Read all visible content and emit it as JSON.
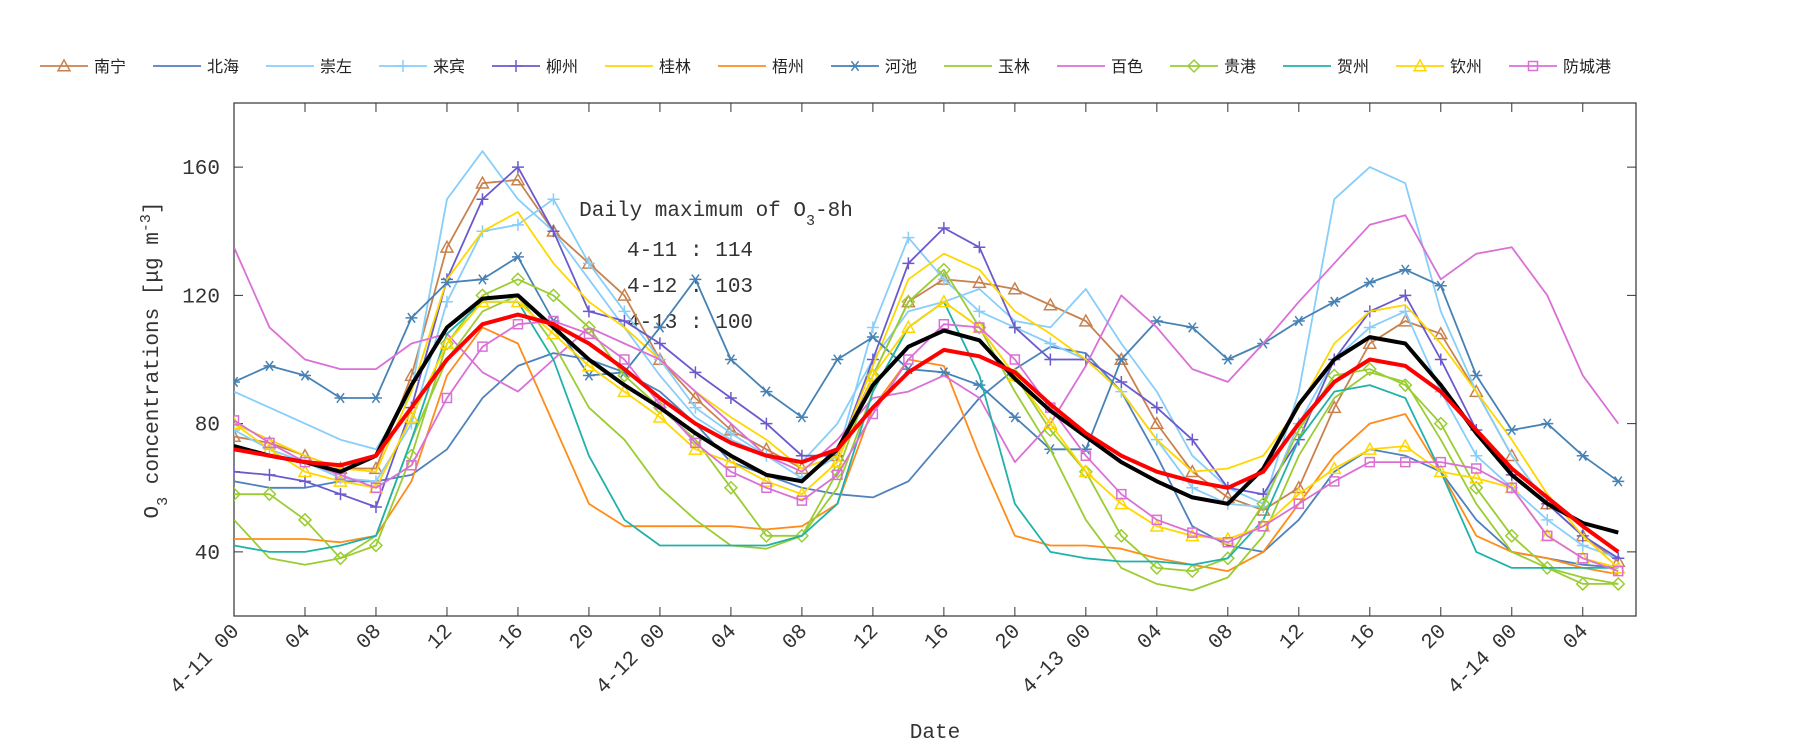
{
  "chart_data": {
    "type": "line",
    "xlabel": "Date",
    "ylabel": [
      {
        "text": "O"
      },
      {
        "text": "3",
        "shift": "sub"
      },
      {
        "text": " concentrations [μg m"
      },
      {
        "text": "-3",
        "shift": "super"
      },
      {
        "text": "]"
      }
    ],
    "annotation": {
      "title": [
        {
          "text": "Daily maximum of O"
        },
        {
          "text": "3",
          "shift": "sub"
        },
        {
          "text": "-8h"
        }
      ],
      "lines": [
        "4-11 : 114",
        "4-12 : 103",
        "4-13 : 100"
      ]
    },
    "xlim": [
      0,
      79
    ],
    "xticks": [
      {
        "value": 0,
        "label": "4-11 00"
      },
      {
        "value": 4,
        "label": "04"
      },
      {
        "value": 8,
        "label": "08"
      },
      {
        "value": 12,
        "label": "12"
      },
      {
        "value": 16,
        "label": "16"
      },
      {
        "value": 20,
        "label": "20"
      },
      {
        "value": 24,
        "label": "4-12 00"
      },
      {
        "value": 28,
        "label": "04"
      },
      {
        "value": 32,
        "label": "08"
      },
      {
        "value": 36,
        "label": "12"
      },
      {
        "value": 40,
        "label": "16"
      },
      {
        "value": 44,
        "label": "20"
      },
      {
        "value": 48,
        "label": "4-13 00"
      },
      {
        "value": 52,
        "label": "04"
      },
      {
        "value": 56,
        "label": "08"
      },
      {
        "value": 60,
        "label": "12"
      },
      {
        "value": 64,
        "label": "16"
      },
      {
        "value": 68,
        "label": "20"
      },
      {
        "value": 72,
        "label": "4-14 00"
      },
      {
        "value": 76,
        "label": "04"
      }
    ],
    "ylim": [
      20,
      180
    ],
    "yticks": [
      40,
      80,
      120,
      160
    ],
    "grid": false,
    "x": [
      0,
      2,
      4,
      6,
      8,
      10,
      12,
      14,
      16,
      18,
      20,
      22,
      24,
      26,
      28,
      30,
      32,
      34,
      36,
      38,
      40,
      42,
      44,
      46,
      48,
      50,
      52,
      54,
      56,
      58,
      60,
      62,
      64,
      66,
      68,
      70,
      72,
      74,
      76,
      78
    ],
    "series": [
      {
        "name": "南宁",
        "color": "#c8824f",
        "marker": "triangle",
        "values": [
          76,
          74,
          70,
          66,
          66,
          95,
          135,
          155,
          156,
          140,
          130,
          120,
          100,
          88,
          78,
          72,
          66,
          70,
          95,
          118,
          125,
          124,
          122,
          117,
          112,
          100,
          80,
          65,
          57,
          53,
          60,
          85,
          105,
          112,
          108,
          90,
          70,
          55,
          45,
          37
        ]
      },
      {
        "name": "北海",
        "color": "#4f81bd",
        "values": [
          62,
          60,
          60,
          62,
          62,
          64,
          72,
          88,
          98,
          102,
          100,
          96,
          90,
          80,
          68,
          64,
          60,
          58,
          57,
          62,
          75,
          88,
          97,
          104,
          102,
          90,
          70,
          48,
          42,
          40,
          50,
          65,
          72,
          70,
          65,
          50,
          40,
          38,
          36,
          35
        ]
      },
      {
        "name": "崇左",
        "color": "#87cefa",
        "values": [
          90,
          85,
          80,
          75,
          72,
          90,
          150,
          165,
          150,
          140,
          125,
          110,
          95,
          82,
          75,
          70,
          68,
          80,
          100,
          115,
          118,
          122,
          112,
          110,
          122,
          105,
          90,
          70,
          60,
          55,
          90,
          150,
          160,
          155,
          115,
          90,
          70,
          55,
          45,
          38
        ]
      },
      {
        "name": "来宾",
        "color": "#87cefa",
        "marker": "plus",
        "values": [
          78,
          72,
          68,
          63,
          62,
          80,
          118,
          140,
          142,
          150,
          130,
          115,
          100,
          85,
          77,
          70,
          63,
          70,
          110,
          138,
          125,
          115,
          110,
          105,
          100,
          90,
          75,
          60,
          55,
          54,
          80,
          100,
          110,
          115,
          90,
          70,
          60,
          50,
          42,
          38
        ]
      },
      {
        "name": "柳州",
        "color": "#6a5acd",
        "marker": "plus",
        "values": [
          65,
          64,
          62,
          58,
          54,
          85,
          125,
          150,
          160,
          140,
          115,
          112,
          105,
          96,
          88,
          80,
          70,
          70,
          100,
          130,
          141,
          135,
          110,
          100,
          100,
          93,
          85,
          75,
          60,
          58,
          75,
          100,
          115,
          120,
          100,
          78,
          64,
          55,
          45,
          38
        ]
      },
      {
        "name": "桂林",
        "color": "#ffd700",
        "values": [
          80,
          75,
          70,
          66,
          65,
          90,
          125,
          140,
          146,
          130,
          118,
          110,
          100,
          90,
          82,
          75,
          66,
          70,
          98,
          125,
          133,
          128,
          115,
          108,
          100,
          90,
          75,
          65,
          66,
          70,
          85,
          105,
          115,
          117,
          105,
          90,
          75,
          58,
          45,
          35
        ]
      },
      {
        "name": "梧州",
        "color": "#ff8c1a",
        "values": [
          44,
          44,
          44,
          43,
          45,
          62,
          95,
          110,
          105,
          80,
          55,
          48,
          48,
          48,
          48,
          47,
          48,
          55,
          85,
          100,
          98,
          70,
          45,
          42,
          42,
          41,
          38,
          36,
          34,
          40,
          55,
          70,
          80,
          83,
          65,
          45,
          40,
          38,
          35,
          33
        ]
      },
      {
        "name": "河池",
        "color": "#4682b4",
        "marker": "asterisk",
        "values": [
          93,
          98,
          95,
          88,
          88,
          113,
          124,
          125,
          132,
          112,
          95,
          96,
          110,
          125,
          100,
          90,
          82,
          100,
          107,
          97,
          96,
          92,
          82,
          72,
          72,
          100,
          112,
          110,
          100,
          105,
          112,
          118,
          124,
          128,
          123,
          95,
          78,
          80,
          70,
          62
        ]
      },
      {
        "name": "玉林",
        "color": "#9acd32",
        "values": [
          50,
          38,
          36,
          38,
          45,
          75,
          100,
          115,
          120,
          105,
          85,
          75,
          60,
          50,
          42,
          41,
          45,
          60,
          90,
          110,
          118,
          110,
          90,
          72,
          50,
          35,
          30,
          28,
          32,
          45,
          70,
          88,
          96,
          93,
          75,
          55,
          40,
          35,
          32,
          30
        ]
      },
      {
        "name": "百色",
        "color": "#da70d6",
        "values": [
          135,
          110,
          100,
          97,
          97,
          105,
          108,
          96,
          90,
          100,
          110,
          105,
          100,
          90,
          80,
          70,
          65,
          75,
          88,
          90,
          95,
          88,
          68,
          80,
          98,
          120,
          110,
          97,
          93,
          105,
          118,
          130,
          142,
          145,
          125,
          133,
          135,
          120,
          95,
          80
        ]
      },
      {
        "name": "贵港",
        "color": "#9acd32",
        "marker": "diamond",
        "values": [
          58,
          58,
          50,
          38,
          42,
          70,
          105,
          120,
          125,
          120,
          110,
          95,
          85,
          75,
          60,
          45,
          45,
          65,
          95,
          118,
          128,
          110,
          95,
          78,
          65,
          45,
          35,
          34,
          38,
          55,
          78,
          95,
          97,
          92,
          80,
          60,
          45,
          35,
          30,
          30
        ]
      },
      {
        "name": "贺州",
        "color": "#20b2aa",
        "values": [
          42,
          40,
          40,
          42,
          45,
          75,
          108,
          118,
          118,
          100,
          70,
          50,
          42,
          42,
          42,
          42,
          45,
          55,
          90,
          110,
          118,
          95,
          55,
          40,
          38,
          37,
          37,
          36,
          38,
          50,
          75,
          90,
          92,
          88,
          65,
          40,
          35,
          35,
          35,
          35
        ]
      },
      {
        "name": "钦州",
        "color": "#ffd700",
        "marker": "triangle",
        "values": [
          80,
          72,
          65,
          62,
          60,
          82,
          105,
          118,
          118,
          108,
          98,
          90,
          82,
          72,
          68,
          62,
          58,
          68,
          95,
          110,
          118,
          110,
          95,
          80,
          65,
          55,
          48,
          45,
          44,
          48,
          58,
          66,
          72,
          73,
          65,
          63,
          60,
          45,
          38,
          35
        ]
      },
      {
        "name": "防城港",
        "color": "#da70d6",
        "marker": "square",
        "values": [
          81,
          74,
          68,
          64,
          60,
          67,
          88,
          104,
          111,
          112,
          108,
          100,
          86,
          74,
          65,
          60,
          56,
          64,
          83,
          100,
          111,
          110,
          100,
          85,
          70,
          58,
          50,
          46,
          43,
          48,
          55,
          62,
          68,
          68,
          68,
          66,
          60,
          45,
          38,
          34
        ]
      },
      {
        "color": "#000000",
        "line_width": 4,
        "values": [
          73,
          70,
          68,
          65,
          70,
          92,
          110,
          119,
          120,
          110,
          100,
          92,
          85,
          77,
          70,
          64,
          62,
          72,
          92,
          104,
          109,
          106,
          94,
          84,
          76,
          68,
          62,
          57,
          55,
          66,
          86,
          100,
          107,
          105,
          92,
          77,
          64,
          55,
          49,
          46
        ]
      },
      {
        "color": "#ff0000",
        "line_width": 4,
        "values": [
          72,
          70,
          68,
          67,
          70,
          85,
          100,
          111,
          114,
          111,
          105,
          97,
          88,
          80,
          74,
          70,
          68,
          72,
          85,
          96,
          103,
          101,
          96,
          86,
          77,
          70,
          65,
          62,
          60,
          65,
          80,
          93,
          100,
          98,
          90,
          78,
          66,
          57,
          48,
          40
        ]
      }
    ]
  }
}
